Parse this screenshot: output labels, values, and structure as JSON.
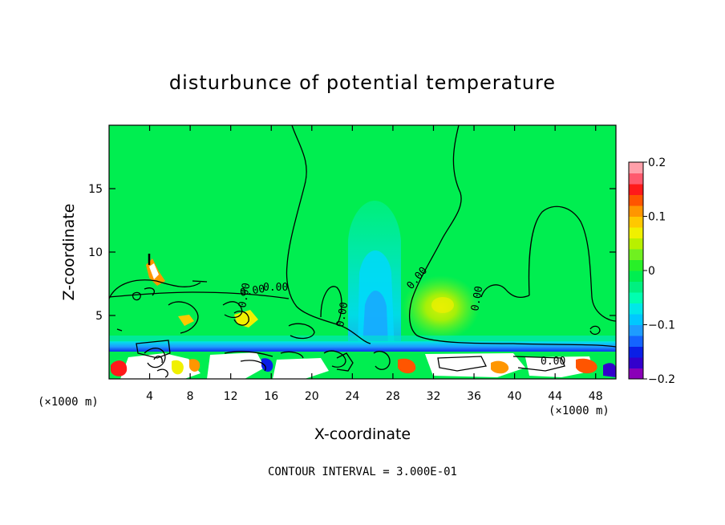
{
  "chart_data": {
    "type": "heatmap",
    "title": "disturbunce of potential temperature",
    "xlabel": "X-coordinate",
    "ylabel": "Z-coordinate",
    "x_unit": "(×1000 m)",
    "x_unit_right": "(×1000 m)",
    "xlim": [
      0,
      50
    ],
    "ylim": [
      0,
      20
    ],
    "x_ticks": [
      4,
      8,
      12,
      16,
      20,
      24,
      28,
      32,
      36,
      40,
      44,
      48
    ],
    "x_tick_labels": [
      "4",
      "8",
      "12",
      "16",
      "20",
      "24",
      "28",
      "32",
      "36",
      "40",
      "44",
      "48"
    ],
    "y_ticks": [
      5,
      10,
      15
    ],
    "y_tick_labels": [
      "5",
      "10",
      "15"
    ],
    "colorbar": {
      "range": [
        -0.2,
        0.2
      ],
      "tick_labels": [
        "0.2",
        "0.1",
        "0",
        "−0.1",
        "−0.2"
      ],
      "tick_values": [
        0.2,
        0.1,
        0,
        -0.1,
        -0.2
      ],
      "colors": [
        "#8a00b8",
        "#3300cc",
        "#0a1fe6",
        "#1464ff",
        "#1e9cff",
        "#00c8ff",
        "#00e8e8",
        "#00ffb0",
        "#00f080",
        "#00ee50",
        "#28f028",
        "#70f020",
        "#b8f000",
        "#f0f000",
        "#ffc800",
        "#ff9600",
        "#ff5500",
        "#ff1a1a",
        "#ff5a6e",
        "#ffa0aa"
      ]
    },
    "contour_interval_label": "CONTOUR INTERVAL = 3.000E-01",
    "contour_labels": [
      "0.00",
      "0.00",
      "0.00",
      "0.00",
      "0.00",
      "0.00",
      "0.00"
    ],
    "features": [
      {
        "name": "cool-plume",
        "x": 26.5,
        "z_top": 13.5,
        "value": -0.05
      },
      {
        "name": "warm-anomaly",
        "x": 33,
        "z_center": 5.5,
        "value": 0.04
      },
      {
        "name": "cold-surface-layer",
        "z": 2.3,
        "value": -0.12
      }
    ]
  }
}
